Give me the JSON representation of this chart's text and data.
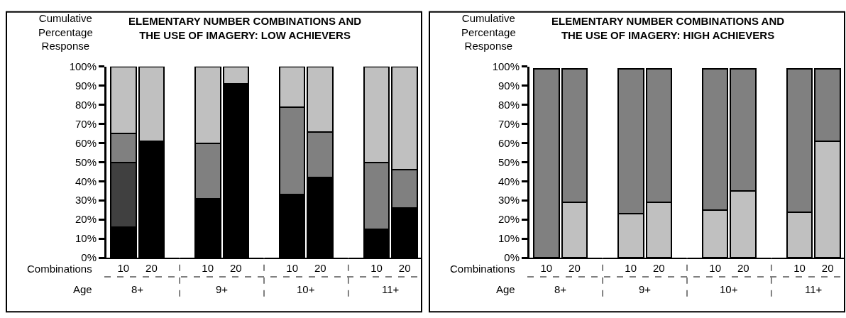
{
  "chart_data": [
    {
      "type": "bar",
      "stacked": true,
      "title": "ELEMENTARY NUMBER COMBINATIONS AND\nTHE USE OF IMAGERY: LOW ACHIEVERS",
      "ylabel": "Cumulative\nPercentage\nResponse",
      "categories": [
        "10",
        "20",
        "10",
        "20",
        "10",
        "20",
        "10",
        "20"
      ],
      "series": [
        {
          "color": "#000000",
          "values": [
            16,
            61,
            31,
            91,
            33,
            42,
            15,
            26
          ]
        },
        {
          "color": "#404040",
          "values": [
            34,
            null,
            null,
            null,
            null,
            null,
            null,
            null
          ]
        },
        {
          "color": "#808080",
          "values": [
            15,
            null,
            29,
            null,
            46,
            24,
            35,
            20
          ]
        },
        {
          "color": "#c0c0c0",
          "values": [
            35,
            39,
            40,
            9,
            21,
            34,
            50,
            54
          ]
        }
      ],
      "ylim": [
        0,
        100
      ],
      "yticks": [
        {
          "value": 0,
          "label": "0%"
        },
        {
          "value": 10,
          "label": "10%"
        },
        {
          "value": 20,
          "label": "20%"
        },
        {
          "value": 30,
          "label": "30%"
        },
        {
          "value": 40,
          "label": "40%"
        },
        {
          "value": 50,
          "label": "50%"
        },
        {
          "value": 60,
          "label": "60%"
        },
        {
          "value": 70,
          "label": "70%"
        },
        {
          "value": 80,
          "label": "80%"
        },
        {
          "value": 90,
          "label": "90%"
        },
        {
          "value": 100,
          "label": "100%"
        }
      ],
      "annotations": [
        "Combinations",
        "Age",
        "8+",
        "9+",
        "10+",
        "11+"
      ]
    },
    {
      "type": "bar",
      "stacked": true,
      "title": "ELEMENTARY NUMBER COMBINATIONS AND\nTHE USE OF IMAGERY: HIGH ACHIEVERS",
      "ylabel": "Cumulative\nPercentage\nResponse",
      "categories": [
        "10",
        "20",
        "10",
        "20",
        "10",
        "20",
        "10",
        "20"
      ],
      "series": [
        {
          "color": "#c0c0c0",
          "values": [
            null,
            29,
            23,
            29,
            25,
            35,
            24,
            61
          ]
        },
        {
          "color": "#808080",
          "values": [
            99,
            70,
            76,
            70,
            74,
            64,
            75,
            38
          ]
        }
      ],
      "ylim": [
        0,
        100
      ],
      "yticks": [
        {
          "value": 0,
          "label": "0%"
        },
        {
          "value": 10,
          "label": "10%"
        },
        {
          "value": 20,
          "label": "20%"
        },
        {
          "value": 30,
          "label": "30%"
        },
        {
          "value": 40,
          "label": "40%"
        },
        {
          "value": 50,
          "label": "50%"
        },
        {
          "value": 60,
          "label": "60%"
        },
        {
          "value": 70,
          "label": "70%"
        },
        {
          "value": 80,
          "label": "80%"
        },
        {
          "value": 90,
          "label": "90%"
        },
        {
          "value": 100,
          "label": "100%"
        }
      ],
      "annotations": [
        "Combinations",
        "Age",
        "8+",
        "9+",
        "10+",
        "11+"
      ]
    }
  ]
}
